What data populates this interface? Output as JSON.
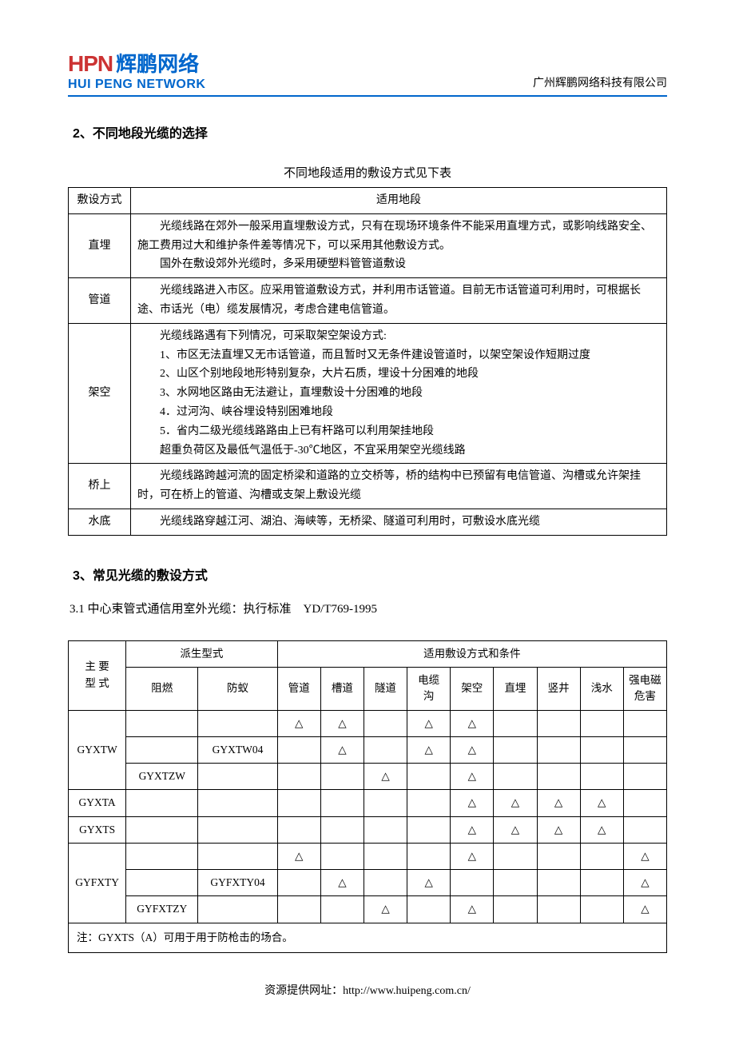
{
  "logo": {
    "hpn": "HPN",
    "cn": "辉鹏网络",
    "en": "HUI PENG NETWORK"
  },
  "header_company": "广州辉鹏网络科技有限公司",
  "section2": {
    "num": "2",
    "title": "、不同地段光缆的选择",
    "caption": "不同地段适用的敷设方式见下表",
    "head_col1": "敷设方式",
    "head_col2": "适用地段",
    "rows": [
      {
        "label": "直埋",
        "lines": [
          "光缆线路在郊外一般采用直埋敷设方式，只有在现场环境条件不能采用直埋方式，或影响线路安全、施工费用过大和维护条件差等情况下，可以采用其他敷设方式。",
          "国外在敷设郊外光缆时，多采用硬塑料管管道敷设"
        ]
      },
      {
        "label": "管道",
        "lines": [
          "光缆线路进入市区。应采用管道敷设方式，并利用市话管道。目前无市话管道可利用时，可根据长途、市话光（电）缆发展情况，考虑合建电信管道。"
        ]
      },
      {
        "label": "架空",
        "lines": [
          "光缆线路遇有下列情况，可采取架空架设方式:",
          "1、市区无法直埋又无市话管道，而且暂时又无条件建设管道时，以架空架设作短期过度",
          "2、山区个别地段地形特别复杂，大片石质，埋设十分困难的地段",
          "3、水网地区路由无法避让，直埋敷设十分困难的地段",
          "4．过河沟、峡谷埋设特别困难地段",
          "5．省内二级光缆线路路由上已有杆路可以利用架挂地段",
          "超重负荷区及最低气温低于-30℃地区，不宜采用架空光缆线路"
        ]
      },
      {
        "label": "桥上",
        "lines": [
          "光缆线路跨越河流的固定桥梁和道路的立交桥等，桥的结构中已预留有电信管道、沟槽或允许架挂时，可在桥上的管道、沟槽或支架上敷设光缆"
        ]
      },
      {
        "label": "水底",
        "lines": [
          "光缆线路穿越江河、湖泊、海峡等，无桥梁、隧道可利用时，可敷设水底光缆"
        ]
      }
    ]
  },
  "section3": {
    "num": "3",
    "title": "、常见光缆的敷设方式",
    "sub": "3.1 中心束管式通信用室外光缆：执行标准　YD/T769-1995",
    "head": {
      "main_type": "主 要\n型 式",
      "derived": "派生型式",
      "conditions": "适用敷设方式和条件",
      "flame": "阻燃",
      "ant": "防蚁",
      "cols": [
        "管道",
        "槽道",
        "隧道",
        "电缆\n沟",
        "架空",
        "直埋",
        "竖井",
        "浅水",
        "强电磁\n危害"
      ]
    },
    "mark": "△",
    "rows": [
      {
        "main": "GYXTW",
        "flame": "",
        "ant": "",
        "v": [
          "△",
          "△",
          "",
          "△",
          "△",
          "",
          "",
          "",
          ""
        ]
      },
      {
        "main": "",
        "flame": "",
        "ant": "GYXTW04",
        "v": [
          "",
          "△",
          "",
          "△",
          "△",
          "",
          "",
          "",
          ""
        ]
      },
      {
        "main": "",
        "flame": "GYXTZW",
        "ant": "",
        "v": [
          "",
          "",
          "△",
          "",
          "△",
          "",
          "",
          "",
          ""
        ]
      },
      {
        "main": "GYXTA",
        "flame": "",
        "ant": "",
        "v": [
          "",
          "",
          "",
          "",
          "△",
          "△",
          "△",
          "△",
          ""
        ]
      },
      {
        "main": "GYXTS",
        "flame": "",
        "ant": "",
        "v": [
          "",
          "",
          "",
          "",
          "△",
          "△",
          "△",
          "△",
          ""
        ]
      },
      {
        "main": "GYFXTY",
        "flame": "",
        "ant": "",
        "v": [
          "△",
          "",
          "",
          "",
          "△",
          "",
          "",
          "",
          "△"
        ]
      },
      {
        "main": "",
        "flame": "",
        "ant": "GYFXTY04",
        "v": [
          "",
          "△",
          "",
          "△",
          "",
          "",
          "",
          "",
          "△"
        ]
      },
      {
        "main": "",
        "flame": "GYFXTZY",
        "ant": "",
        "v": [
          "",
          "",
          "△",
          "",
          "△",
          "",
          "",
          "",
          "△"
        ]
      }
    ],
    "note": "注：GYXTS（A）可用于用于防枪击的场合。"
  },
  "footer": {
    "label": "资源提供网址：",
    "url": "http://www.huipeng.com.cn/"
  }
}
